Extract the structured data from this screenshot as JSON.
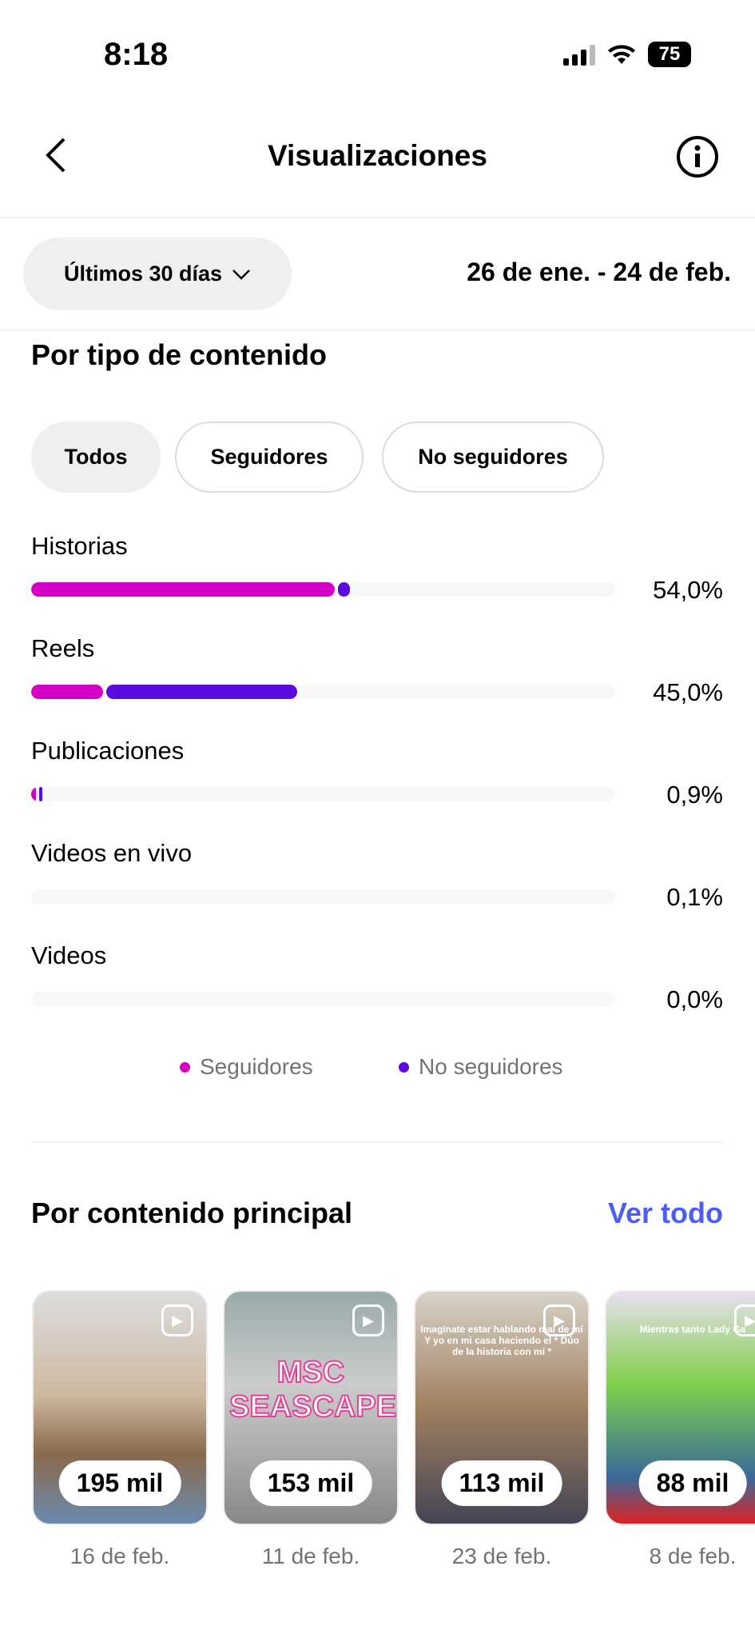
{
  "status_bar": {
    "time": "8:18",
    "battery": "75"
  },
  "header": {
    "title": "Visualizaciones",
    "back_icon": "chevron-left-icon",
    "info_icon": "info-icon"
  },
  "filter": {
    "period": "Últimos 30 días",
    "range": "26 de ene. - 24 de feb."
  },
  "content_type": {
    "title": "Por tipo de contenido",
    "chips": [
      "Todos",
      "Seguidores",
      "No seguidores"
    ],
    "selected_chip": "Todos",
    "rows": [
      {
        "label": "Historias",
        "percent": "54,0%",
        "followers_pct": 52,
        "non_followers_pct": 2
      },
      {
        "label": "Reels",
        "percent": "45,0%",
        "followers_pct": 12.3,
        "non_followers_pct": 32.7
      },
      {
        "label": "Publicaciones",
        "percent": "0,9%",
        "followers_pct": 0.8,
        "non_followers_pct": 0.1
      },
      {
        "label": "Videos en vivo",
        "percent": "0,1%",
        "followers_pct": 0,
        "non_followers_pct": 0
      },
      {
        "label": "Videos",
        "percent": "0,0%",
        "followers_pct": 0,
        "non_followers_pct": 0
      }
    ],
    "legend": {
      "followers": "Seguidores",
      "non_followers": "No seguidores"
    },
    "colors": {
      "followers": "#d400c4",
      "non_followers": "#5b0be0",
      "track": "#f6f7f7"
    }
  },
  "top_content": {
    "title": "Por contenido principal",
    "see_all": "Ver todo",
    "accent": "#4a5df9",
    "items": [
      {
        "views": "195 mil",
        "date": "16 de feb."
      },
      {
        "views": "153 mil",
        "date": "11 de feb.",
        "overlay": "MSC SEASCAPE"
      },
      {
        "views": "113 mil",
        "date": "23 de feb.",
        "overlay": "Imagínate estar hablando mal de mí Y yo en mi casa haciendo el * Dúo de la historia con mí *"
      },
      {
        "views": "88 mil",
        "date": "8 de feb.",
        "overlay": "Mientras tanto Lady Ga"
      }
    ]
  }
}
